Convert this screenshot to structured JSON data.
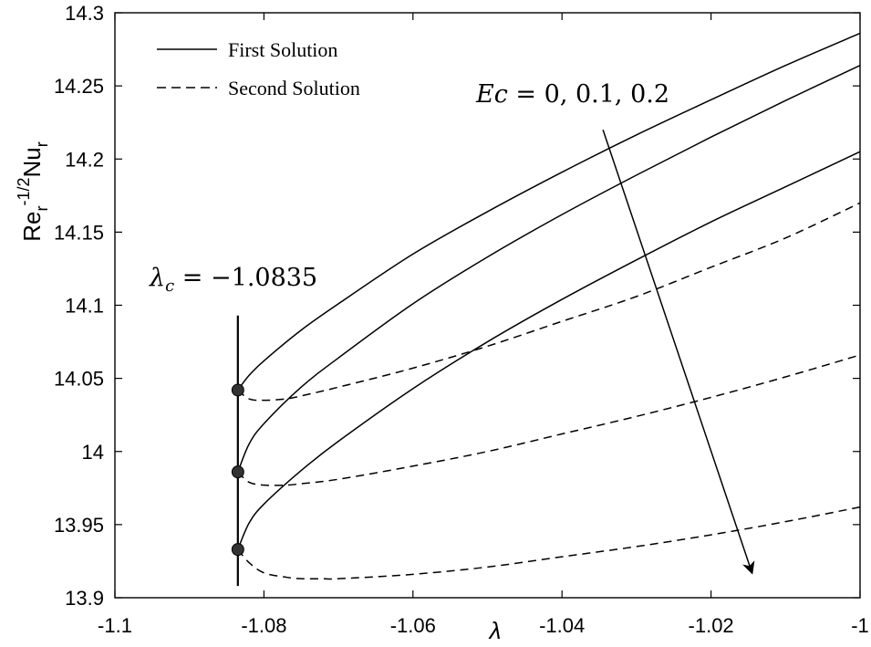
{
  "chart_data": {
    "type": "line",
    "xlabel": "λ",
    "ylabel": {
      "base": "Re",
      "sub1": "r",
      "sup": "-1/2",
      "mid": "Nu",
      "sub2": "r"
    },
    "xlim": [
      -1.1,
      -1.0
    ],
    "ylim": [
      13.9,
      14.3
    ],
    "x_ticks": [
      -1.1,
      -1.08,
      -1.06,
      -1.04,
      -1.02,
      -1.0
    ],
    "x_tick_labels": [
      "-1.1",
      "-1.08",
      "-1.06",
      "-1.04",
      "-1.02",
      "-1"
    ],
    "y_ticks": [
      13.9,
      13.95,
      14.0,
      14.05,
      14.1,
      14.15,
      14.2,
      14.25,
      14.3
    ],
    "y_tick_labels": [
      "13.9",
      "13.95",
      "14",
      "14.05",
      "14.1",
      "14.15",
      "14.2",
      "14.25",
      "14.3"
    ],
    "grid": false,
    "legend": {
      "placement": "top-left",
      "entries": [
        {
          "label": "First Solution",
          "style": "solid"
        },
        {
          "label": "Second Solution",
          "style": "dashed"
        }
      ]
    },
    "series": [
      {
        "name": "First Solution",
        "group": "Ec=0",
        "style": "solid",
        "x": [
          -1.0835,
          -1.082,
          -1.08,
          -1.075,
          -1.07,
          -1.06,
          -1.05,
          -1.04,
          -1.03,
          -1.02,
          -1.01,
          -1.0
        ],
        "y": [
          14.042,
          14.052,
          14.062,
          14.083,
          14.101,
          14.135,
          14.164,
          14.191,
          14.2165,
          14.2405,
          14.264,
          14.286
        ]
      },
      {
        "name": "First Solution",
        "group": "Ec=0.1",
        "style": "solid",
        "x": [
          -1.0835,
          -1.082,
          -1.08,
          -1.075,
          -1.07,
          -1.06,
          -1.05,
          -1.04,
          -1.03,
          -1.02,
          -1.01,
          -1.0
        ],
        "y": [
          13.986,
          14.005,
          14.019,
          14.044,
          14.064,
          14.101,
          14.133,
          14.162,
          14.189,
          14.215,
          14.24,
          14.264
        ]
      },
      {
        "name": "First Solution",
        "group": "Ec=0.2",
        "style": "solid",
        "x": [
          -1.0835,
          -1.082,
          -1.08,
          -1.075,
          -1.07,
          -1.06,
          -1.05,
          -1.04,
          -1.03,
          -1.02,
          -1.01,
          -1.0
        ],
        "y": [
          13.933,
          13.951,
          13.964,
          13.987,
          14.007,
          14.043,
          14.075,
          14.104,
          14.131,
          14.157,
          14.181,
          14.205
        ]
      },
      {
        "name": "Second Solution",
        "group": "Ec=0",
        "style": "dashed",
        "x": [
          -1.0835,
          -1.082,
          -1.08,
          -1.077,
          -1.075,
          -1.07,
          -1.06,
          -1.05,
          -1.04,
          -1.03,
          -1.02,
          -1.01,
          -1.0
        ],
        "y": [
          14.042,
          14.036,
          14.035,
          14.036,
          14.038,
          14.044,
          14.057,
          14.072,
          14.089,
          14.106,
          14.126,
          14.146,
          14.17
        ]
      },
      {
        "name": "Second Solution",
        "group": "Ec=0.1",
        "style": "dashed",
        "x": [
          -1.0835,
          -1.082,
          -1.08,
          -1.077,
          -1.075,
          -1.07,
          -1.06,
          -1.05,
          -1.04,
          -1.03,
          -1.02,
          -1.01,
          -1.0
        ],
        "y": [
          13.986,
          13.979,
          13.977,
          13.977,
          13.978,
          13.981,
          13.99,
          14.0,
          14.012,
          14.024,
          14.037,
          14.051,
          14.066
        ]
      },
      {
        "name": "Second Solution",
        "group": "Ec=0.2",
        "style": "dashed",
        "x": [
          -1.0835,
          -1.082,
          -1.08,
          -1.077,
          -1.075,
          -1.072,
          -1.07,
          -1.06,
          -1.05,
          -1.04,
          -1.03,
          -1.02,
          -1.01,
          -1.0
        ],
        "y": [
          13.933,
          13.924,
          13.917,
          13.914,
          13.913,
          13.913,
          13.913,
          13.916,
          13.921,
          13.928,
          13.935,
          13.943,
          13.952,
          13.962
        ]
      }
    ],
    "critical_points": {
      "x": -1.0835,
      "y": [
        14.042,
        13.986,
        13.933
      ]
    },
    "critical_line": {
      "x": -1.0835,
      "y_range": [
        13.908,
        14.093
      ]
    },
    "annotations": {
      "ec_label": {
        "lhs": "Ec",
        "rhs": "0, 0.1, 0.2"
      },
      "lambda_c_label": {
        "lhs": "λ",
        "sub": "c",
        "rhs": "−1.0835"
      },
      "arrow": {
        "from": [
          -1.0345,
          14.22
        ],
        "to": [
          -1.0145,
          13.917
        ]
      }
    }
  }
}
